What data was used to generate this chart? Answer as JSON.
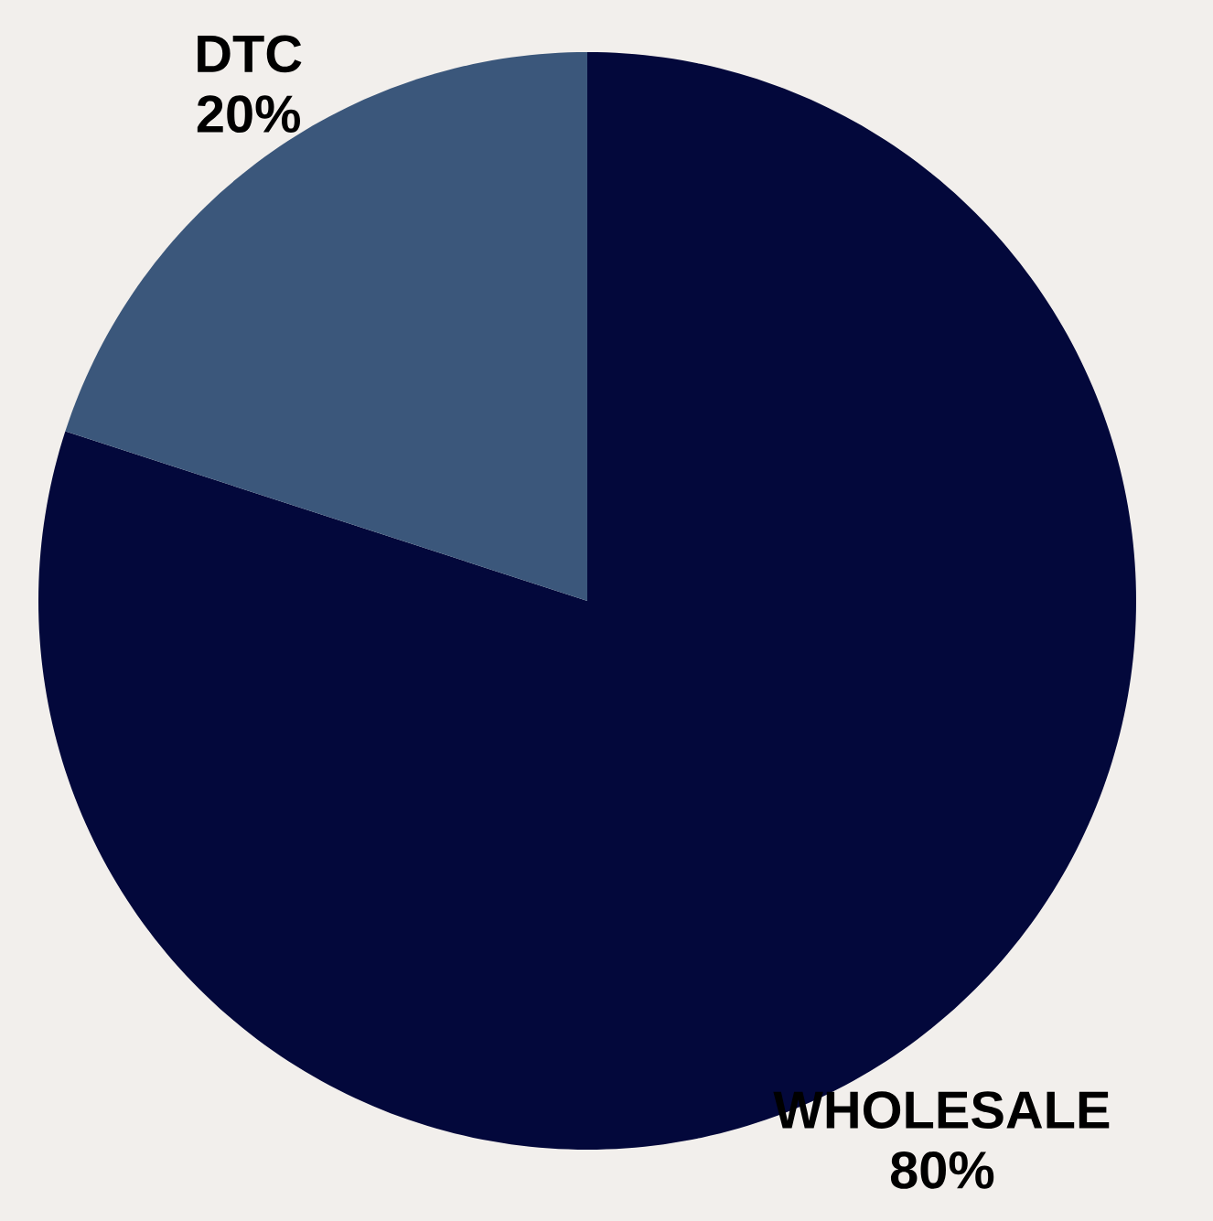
{
  "chart_data": {
    "type": "pie",
    "categories": [
      "WHOLESALE",
      "DTC"
    ],
    "values": [
      80,
      20
    ],
    "value_labels": [
      "80%",
      "20%"
    ],
    "colors": [
      "#03083b",
      "#3b577b"
    ]
  }
}
